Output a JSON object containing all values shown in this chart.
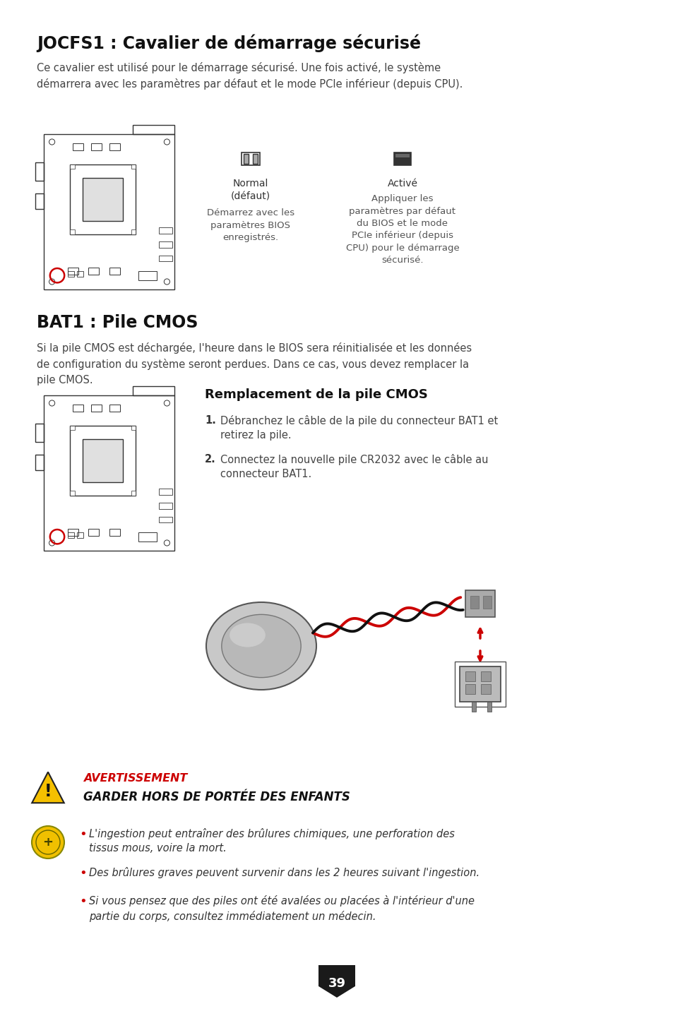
{
  "bg_color": "#ffffff",
  "title1": "JOCFS1 : Cavalier de démarrage sécurisé",
  "desc1": "Ce cavalier est utilisé pour le démarrage sécurisé. Une fois activé, le système\ndémarrera avec les paramètres par défaut et le mode PCIe inférieur (depuis CPU).",
  "normal_label": "Normal\n(défaut)",
  "normal_sub": "Démarrez avec les\nparamètres BIOS\nenregistrés.",
  "active_label": "Activé",
  "active_sub": "Appliquer les\nparamètres par défaut\ndu BIOS et le mode\nPCIe inférieur (depuis\nCPU) pour le démarrage\nsécurisé.",
  "title2": "BAT1 : Pile CMOS",
  "desc2": "Si la pile CMOS est déchargée, l'heure dans le BIOS sera réinitialisée et les données\nde configuration du système seront perdues. Dans ce cas, vous devez remplacer la\npile CMOS.",
  "replacement_title": "Remplacement de la pile CMOS",
  "step1": "Débranchez le câble de la pile du connecteur BAT1 et\nretirez la pile.",
  "step2": "Connectez la nouvelle pile CR2032 avec le câble au\nconnecteur BAT1.",
  "warning_title": "AVERTISSEMENT",
  "warning_bold": "GARDER HORS DE PORTÉE DES ENFANTS",
  "bullet1": "L'ingestion peut entraîner des brûlures chimiques, une perforation des\ntissus mous, voire la mort.",
  "bullet2": "Des brûlures graves peuvent survenir dans les 2 heures suivant l'ingestion.",
  "bullet3": "Si vous pensez que des piles ont été avalées ou placées à l'intérieur d'une\npartie du corps, consultez immédiatement un médecin.",
  "page_num": "39",
  "text_color": "#333333",
  "red_color": "#cc0000",
  "yellow_color": "#f0c000",
  "edge_color": "#333333"
}
